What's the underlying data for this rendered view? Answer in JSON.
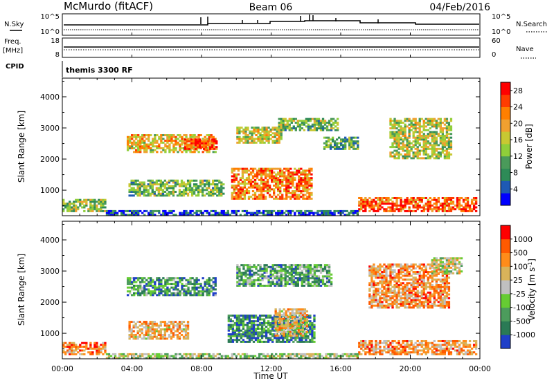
{
  "header": {
    "station": "McMurdo (fitACF)",
    "beam": "Beam 06",
    "date": "04/Feb/2016"
  },
  "strip_labels": {
    "nsky": "N.Sky",
    "nsearch": "N.Search",
    "nave": "Nave",
    "freq_line1": "Freq.",
    "freq_line2": "[MHz]",
    "cpid": "CPID",
    "cpid_value": "themis 3300 RF"
  },
  "strip_ticks": {
    "noise_left": [
      "10^5",
      "10^0"
    ],
    "noise_right": [
      "10^5",
      "10^0"
    ],
    "freq_left": [
      "18",
      "8"
    ],
    "nave_right": [
      "60",
      "0"
    ]
  },
  "colors": {
    "power": [
      "#0000ff",
      "#1e5ab4",
      "#2e8b57",
      "#4a9a5a",
      "#8fce3a",
      "#c8c832",
      "#f0a030",
      "#ff7f00",
      "#ff3c00",
      "#ff0000"
    ],
    "velocity": [
      "#1f3fc8",
      "#2a7a55",
      "#4c9c5c",
      "#66cc33",
      "#c0c0c0",
      "#d9b35a",
      "#ff8c1a",
      "#ff5a00",
      "#ff0000"
    ]
  },
  "chart_data": [
    {
      "type": "heatmap",
      "title": "",
      "xlabel": "Time UT",
      "ylabel": "Slant Range [km]",
      "x_ticks": [
        "00:00",
        "04:00",
        "08:00",
        "12:00",
        "16:00",
        "20:00",
        "00:00"
      ],
      "xlim_hours": [
        0,
        24
      ],
      "y_ticks": [
        "4000",
        "3000",
        "2000",
        "1000"
      ],
      "ylim": [
        180,
        4600
      ],
      "colorbar": {
        "label": "Power [dB]",
        "ticks": [
          "28",
          "24",
          "20",
          "16",
          "12",
          "8",
          "4"
        ],
        "range": [
          0,
          30
        ]
      },
      "regions": [
        {
          "t0": 0.0,
          "t1": 2.5,
          "r0": 300,
          "r1": 700,
          "level": 0.45
        },
        {
          "t0": 17.0,
          "t1": 23.8,
          "r0": 300,
          "r1": 750,
          "level": 0.8
        },
        {
          "t0": 2.5,
          "t1": 17.0,
          "r0": 180,
          "r1": 320,
          "level": 0.15
        },
        {
          "t0": 3.7,
          "t1": 8.8,
          "r0": 2200,
          "r1": 2800,
          "level": 0.6
        },
        {
          "t0": 7.0,
          "t1": 8.8,
          "r0": 2300,
          "r1": 2650,
          "level": 0.85
        },
        {
          "t0": 9.7,
          "t1": 14.3,
          "r0": 700,
          "r1": 1700,
          "level": 0.75
        },
        {
          "t0": 3.8,
          "t1": 9.3,
          "r0": 800,
          "r1": 1300,
          "level": 0.4
        },
        {
          "t0": 10.0,
          "t1": 12.6,
          "r0": 2500,
          "r1": 3000,
          "level": 0.55
        },
        {
          "t0": 12.4,
          "t1": 15.8,
          "r0": 2900,
          "r1": 3300,
          "level": 0.4
        },
        {
          "t0": 18.8,
          "t1": 22.3,
          "r0": 2000,
          "r1": 3300,
          "level": 0.5
        },
        {
          "t0": 15.0,
          "t1": 17.0,
          "r0": 2300,
          "r1": 2700,
          "level": 0.35
        }
      ]
    },
    {
      "type": "heatmap",
      "title": "",
      "xlabel": "Time UT",
      "ylabel": "Slant Range [km]",
      "x_ticks": [
        "00:00",
        "04:00",
        "08:00",
        "12:00",
        "16:00",
        "20:00",
        "00:00"
      ],
      "xlim_hours": [
        0,
        24
      ],
      "y_ticks": [
        "4000",
        "3000",
        "2000",
        "1000"
      ],
      "ylim": [
        180,
        4600
      ],
      "colorbar": {
        "label": "Velocity [m s",
        "label_sup": "-1",
        "label_tail": "]",
        "ticks": [
          "1000",
          "500",
          "100",
          "25",
          "-25",
          "-100",
          "-500",
          "-1000"
        ],
        "range": [
          -1200,
          1200
        ]
      },
      "regions": [
        {
          "t0": 0.0,
          "t1": 2.5,
          "r0": 300,
          "r1": 700,
          "level": 0.75
        },
        {
          "t0": 17.0,
          "t1": 23.8,
          "r0": 300,
          "r1": 750,
          "level": 0.7
        },
        {
          "t0": 2.5,
          "t1": 17.0,
          "r0": 180,
          "r1": 320,
          "level": 0.45
        },
        {
          "t0": 3.7,
          "t1": 8.8,
          "r0": 2200,
          "r1": 2800,
          "level": 0.25
        },
        {
          "t0": 3.8,
          "t1": 7.2,
          "r0": 800,
          "r1": 1400,
          "level": 0.65
        },
        {
          "t0": 9.5,
          "t1": 14.5,
          "r0": 700,
          "r1": 1600,
          "level": 0.2
        },
        {
          "t0": 12.2,
          "t1": 14.0,
          "r0": 900,
          "r1": 1800,
          "level": 0.6
        },
        {
          "t0": 10.0,
          "t1": 15.5,
          "r0": 2500,
          "r1": 3200,
          "level": 0.3
        },
        {
          "t0": 17.6,
          "t1": 22.2,
          "r0": 1800,
          "r1": 3200,
          "level": 0.7
        },
        {
          "t0": 21.2,
          "t1": 23.0,
          "r0": 2900,
          "r1": 3400,
          "level": 0.5
        }
      ]
    }
  ]
}
